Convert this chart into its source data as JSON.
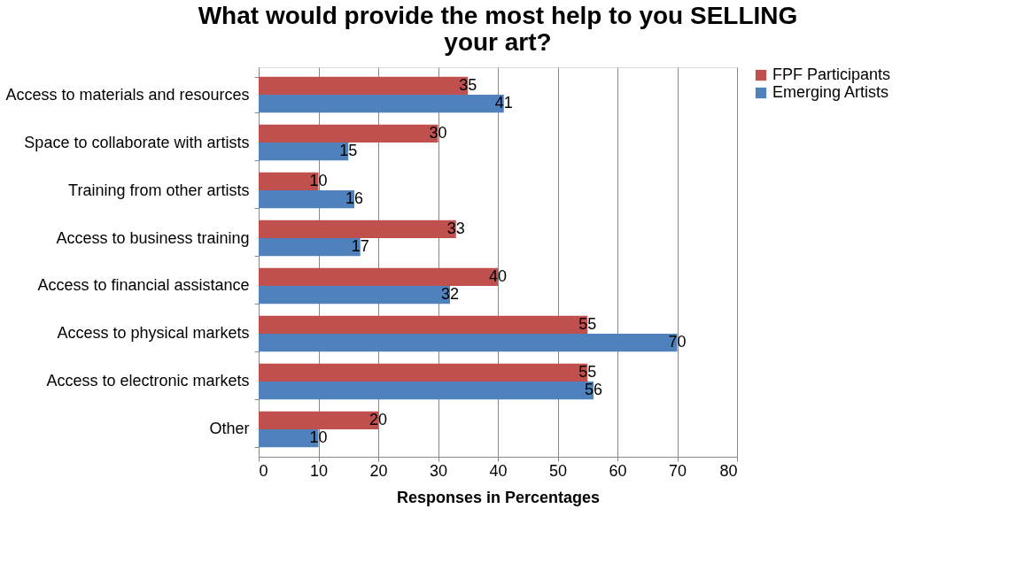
{
  "chart_data": {
    "type": "bar",
    "orientation": "horizontal",
    "title": "What would provide the most help to you SELLING your art?",
    "xlabel": "Responses in Percentages",
    "categories": [
      "Access to materials and resources",
      "Space to collaborate with artists",
      "Training from other artists",
      "Access to business training",
      "Access to financial assistance",
      "Access to physical markets",
      "Access to electronic markets",
      "Other"
    ],
    "series": [
      {
        "name": "FPF Participants",
        "color": "#c0504d",
        "values": [
          35,
          30,
          10,
          33,
          40,
          55,
          55,
          20
        ]
      },
      {
        "name": "Emerging Artists",
        "color": "#4f81bd",
        "values": [
          41,
          15,
          16,
          17,
          32,
          70,
          56,
          10
        ]
      }
    ],
    "xlim": [
      0,
      80
    ],
    "xticks": [
      0,
      10,
      20,
      30,
      40,
      50,
      60,
      70,
      80
    ],
    "grid": "x",
    "legend": "right",
    "data_labels": true
  }
}
